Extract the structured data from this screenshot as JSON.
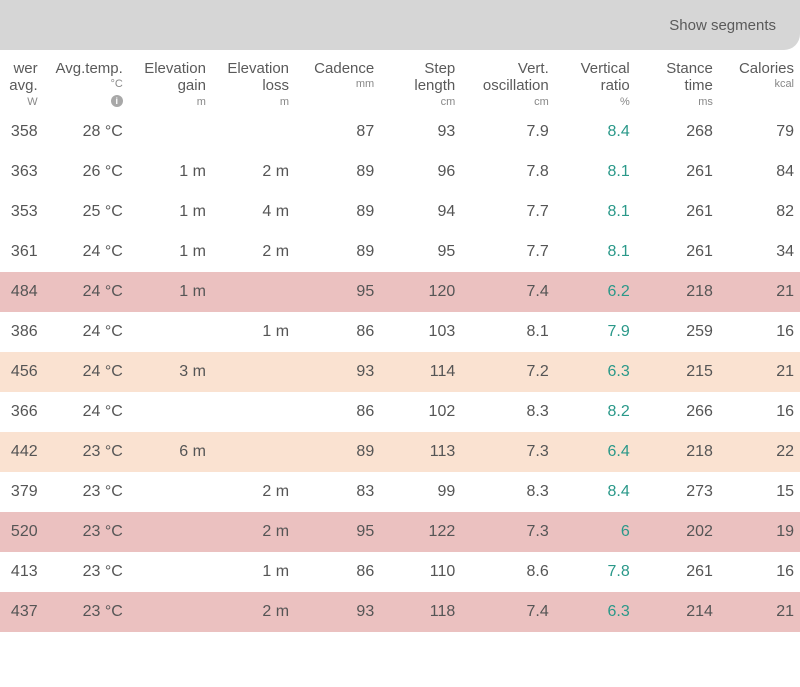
{
  "toolbar": {
    "show_segments_label": "Show segments"
  },
  "table": {
    "columns": [
      {
        "key": "power",
        "label_l1": "wer",
        "label_l2": "avg.",
        "unit": "W",
        "cls": "col-power",
        "info": false
      },
      {
        "key": "temp",
        "label_l1": "Avg.temp.",
        "label_l2": "",
        "unit": "°C",
        "cls": "col-temp",
        "info": true
      },
      {
        "key": "egain",
        "label_l1": "Elevation",
        "label_l2": "gain",
        "unit": "m",
        "cls": "col-egain",
        "info": false
      },
      {
        "key": "eloss",
        "label_l1": "Elevation",
        "label_l2": "loss",
        "unit": "m",
        "cls": "col-eloss",
        "info": false
      },
      {
        "key": "cadence",
        "label_l1": "Cadence",
        "label_l2": "",
        "unit": "mm",
        "cls": "col-cadence",
        "info": false
      },
      {
        "key": "step",
        "label_l1": "Step",
        "label_l2": "length",
        "unit": "cm",
        "cls": "col-step",
        "info": false
      },
      {
        "key": "vosc",
        "label_l1": "Vert.",
        "label_l2": "oscillation",
        "unit": "cm",
        "cls": "col-vosc",
        "info": false
      },
      {
        "key": "vratio",
        "label_l1": "Vertical",
        "label_l2": "ratio",
        "unit": "%",
        "cls": "col-vratio",
        "info": false,
        "teal": true
      },
      {
        "key": "stance",
        "label_l1": "Stance",
        "label_l2": "time",
        "unit": "ms",
        "cls": "col-stance",
        "info": false
      },
      {
        "key": "cal",
        "label_l1": "Calories",
        "label_l2": "",
        "unit": "kcal",
        "cls": "col-cal",
        "info": false
      }
    ],
    "rows": [
      {
        "bg": "",
        "power": "358",
        "temp": "28 °C",
        "egain": "",
        "eloss": "",
        "cadence": "87",
        "step": "93",
        "vosc": "7.9",
        "vratio": "8.4",
        "stance": "268",
        "cal": "79"
      },
      {
        "bg": "",
        "power": "363",
        "temp": "26 °C",
        "egain": "1 m",
        "eloss": "2 m",
        "cadence": "89",
        "step": "96",
        "vosc": "7.8",
        "vratio": "8.1",
        "stance": "261",
        "cal": "84"
      },
      {
        "bg": "",
        "power": "353",
        "temp": "25 °C",
        "egain": "1 m",
        "eloss": "4 m",
        "cadence": "89",
        "step": "94",
        "vosc": "7.7",
        "vratio": "8.1",
        "stance": "261",
        "cal": "82"
      },
      {
        "bg": "",
        "power": "361",
        "temp": "24 °C",
        "egain": "1 m",
        "eloss": "2 m",
        "cadence": "89",
        "step": "95",
        "vosc": "7.7",
        "vratio": "8.1",
        "stance": "261",
        "cal": "34"
      },
      {
        "bg": "pink",
        "power": "484",
        "temp": "24 °C",
        "egain": "1 m",
        "eloss": "",
        "cadence": "95",
        "step": "120",
        "vosc": "7.4",
        "vratio": "6.2",
        "stance": "218",
        "cal": "21"
      },
      {
        "bg": "",
        "power": "386",
        "temp": "24 °C",
        "egain": "",
        "eloss": "1 m",
        "cadence": "86",
        "step": "103",
        "vosc": "8.1",
        "vratio": "7.9",
        "stance": "259",
        "cal": "16"
      },
      {
        "bg": "peach",
        "power": "456",
        "temp": "24 °C",
        "egain": "3 m",
        "eloss": "",
        "cadence": "93",
        "step": "114",
        "vosc": "7.2",
        "vratio": "6.3",
        "stance": "215",
        "cal": "21"
      },
      {
        "bg": "",
        "power": "366",
        "temp": "24 °C",
        "egain": "",
        "eloss": "",
        "cadence": "86",
        "step": "102",
        "vosc": "8.3",
        "vratio": "8.2",
        "stance": "266",
        "cal": "16"
      },
      {
        "bg": "peach",
        "power": "442",
        "temp": "23 °C",
        "egain": "6 m",
        "eloss": "",
        "cadence": "89",
        "step": "113",
        "vosc": "7.3",
        "vratio": "6.4",
        "stance": "218",
        "cal": "22"
      },
      {
        "bg": "",
        "power": "379",
        "temp": "23 °C",
        "egain": "",
        "eloss": "2 m",
        "cadence": "83",
        "step": "99",
        "vosc": "8.3",
        "vratio": "8.4",
        "stance": "273",
        "cal": "15"
      },
      {
        "bg": "pink",
        "power": "520",
        "temp": "23 °C",
        "egain": "",
        "eloss": "2 m",
        "cadence": "95",
        "step": "122",
        "vosc": "7.3",
        "vratio": "6",
        "stance": "202",
        "cal": "19"
      },
      {
        "bg": "",
        "power": "413",
        "temp": "23 °C",
        "egain": "",
        "eloss": "1 m",
        "cadence": "86",
        "step": "110",
        "vosc": "8.6",
        "vratio": "7.8",
        "stance": "261",
        "cal": "16"
      },
      {
        "bg": "pink",
        "power": "437",
        "temp": "23 °C",
        "egain": "",
        "eloss": "2 m",
        "cadence": "93",
        "step": "118",
        "vosc": "7.4",
        "vratio": "6.3",
        "stance": "214",
        "cal": "21"
      }
    ]
  },
  "colors": {
    "toolbar_bg": "#d6d6d6",
    "text": "#5a5a5a",
    "teal": "#2a9889",
    "row_pink": "#ebc1c0",
    "row_peach": "#fae2d1"
  }
}
